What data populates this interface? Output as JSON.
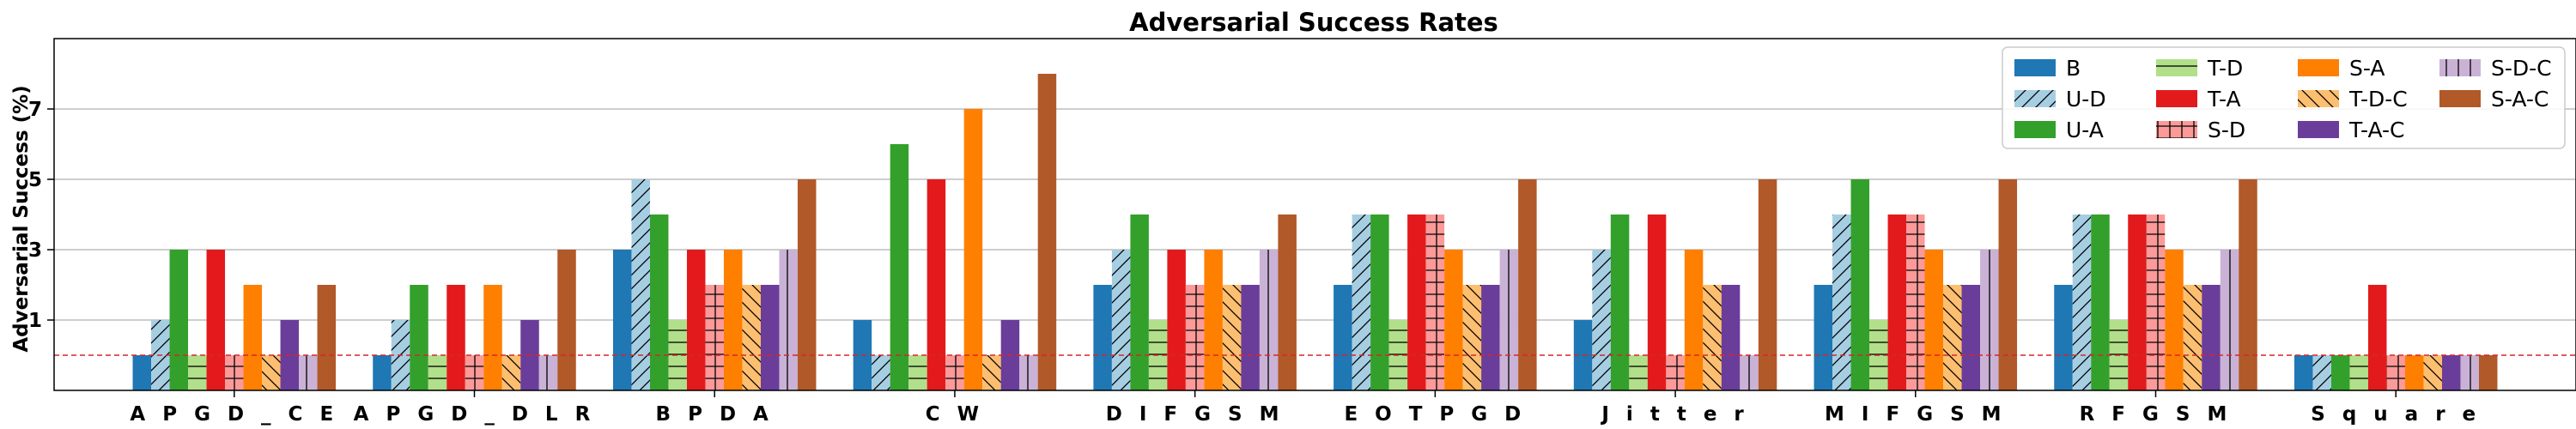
{
  "chart_data": {
    "type": "bar",
    "title": "Adversarial Success Rates",
    "xlabel": "",
    "ylabel": "Adversarial Success (%)",
    "ylim": [
      -1,
      9
    ],
    "yticks": [
      1,
      3,
      5,
      7
    ],
    "grid": "horizontal",
    "reference_line": {
      "value": 0,
      "style": "dashed",
      "color": "#d62728"
    },
    "legend": {
      "placement": "top-right",
      "columns": 4
    },
    "categories": [
      "A P G D _ C E",
      "A P G D _ D L R",
      "B P D A",
      "C W",
      "D I F G S M",
      "E O T P G D",
      "J i t t e r",
      "M I F G S M",
      "R F G S M",
      "S q u a r e"
    ],
    "series": [
      {
        "name": "B",
        "color": "#1f77b4",
        "hatch": "none",
        "values": [
          0,
          0,
          3,
          1,
          2,
          2,
          1,
          2,
          2,
          0
        ]
      },
      {
        "name": "U-D",
        "color": "#a6cee3",
        "hatch": "slash",
        "values": [
          1,
          1,
          5,
          0,
          3,
          4,
          3,
          4,
          4,
          0
        ]
      },
      {
        "name": "U-A",
        "color": "#33a02c",
        "hatch": "none",
        "values": [
          3,
          2,
          4,
          6,
          4,
          4,
          4,
          5,
          4,
          0
        ]
      },
      {
        "name": "T-D",
        "color": "#b2df8a",
        "hatch": "horizontal",
        "values": [
          0,
          0,
          1,
          0,
          1,
          1,
          0,
          1,
          1,
          0
        ]
      },
      {
        "name": "T-A",
        "color": "#e31a1c",
        "hatch": "none",
        "values": [
          3,
          2,
          3,
          5,
          3,
          4,
          4,
          4,
          4,
          2
        ]
      },
      {
        "name": "S-D",
        "color": "#fb9a99",
        "hatch": "plus",
        "values": [
          0,
          0,
          2,
          0,
          2,
          4,
          0,
          4,
          4,
          0
        ]
      },
      {
        "name": "S-A",
        "color": "#ff7f00",
        "hatch": "none",
        "values": [
          2,
          2,
          3,
          7,
          3,
          3,
          3,
          3,
          3,
          0
        ]
      },
      {
        "name": "T-D-C",
        "color": "#fdbf6f",
        "hatch": "backslash",
        "values": [
          0,
          0,
          2,
          0,
          2,
          2,
          2,
          2,
          2,
          0
        ]
      },
      {
        "name": "T-A-C",
        "color": "#6a3d9a",
        "hatch": "none",
        "values": [
          1,
          1,
          2,
          1,
          2,
          2,
          2,
          2,
          2,
          0
        ]
      },
      {
        "name": "S-D-C",
        "color": "#cab2d6",
        "hatch": "vertical",
        "values": [
          0,
          0,
          3,
          0,
          3,
          3,
          0,
          3,
          3,
          0
        ]
      },
      {
        "name": "S-A-C",
        "color": "#b15928",
        "hatch": "none",
        "values": [
          2,
          3,
          5,
          8,
          4,
          5,
          5,
          5,
          5,
          0
        ]
      }
    ]
  }
}
